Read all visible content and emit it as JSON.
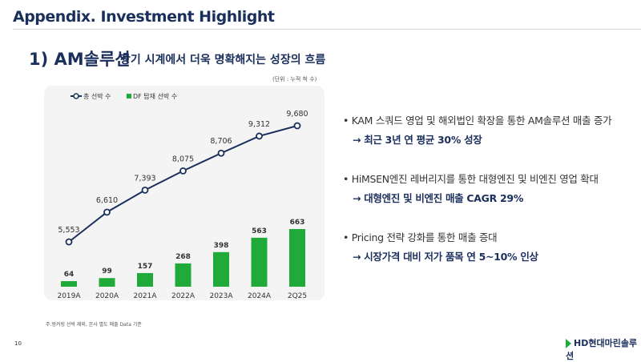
{
  "header": {
    "title": "Appendix. Investment Highlight"
  },
  "section": {
    "title": "1) AM솔루션",
    "subtitle": "장기 시계에서 더욱 명확해지는 성장의 흐름"
  },
  "chart_data": {
    "type": "bar+line",
    "unit_note": "(단위 : 누적 척 수)",
    "categories": [
      "2019A",
      "2020A",
      "2021A",
      "2022A",
      "2023A",
      "2024A",
      "2Q25"
    ],
    "series": [
      {
        "name": "총 선박 수",
        "type": "line",
        "color": "#1b2f5c",
        "values": [
          5553,
          6610,
          7393,
          8075,
          8706,
          9312,
          9680
        ]
      },
      {
        "name": "DF 탑재 선박 수",
        "type": "bar",
        "color": "#1faa3a",
        "values": [
          64,
          99,
          157,
          268,
          398,
          563,
          663
        ]
      }
    ],
    "legend_position": "top-left",
    "grid": false
  },
  "bullets": [
    {
      "text": "KAM 스쿼드 영업 및 해외법인 확장을 통한 AM솔루션 매출 증가",
      "sub": "→ 최근 3년 연 평균 30% 성장"
    },
    {
      "text": "HiMSEN엔진 레버리지를 통한 대형엔진 및 비엔진 영업 확대",
      "sub": "→ 대형엔진 및 비엔진 매출 CAGR 29%"
    },
    {
      "text": "Pricing 전략 강화를 통한 매출 증대",
      "sub": "→  시장가격 대비 저가 품목  연 5~10% 인상"
    }
  ],
  "footnote": "주.벙커링 선박 제외, 본사 별도 매출 Data 기준",
  "page_number": "10",
  "logo_text": "HD현대마린솔루션"
}
